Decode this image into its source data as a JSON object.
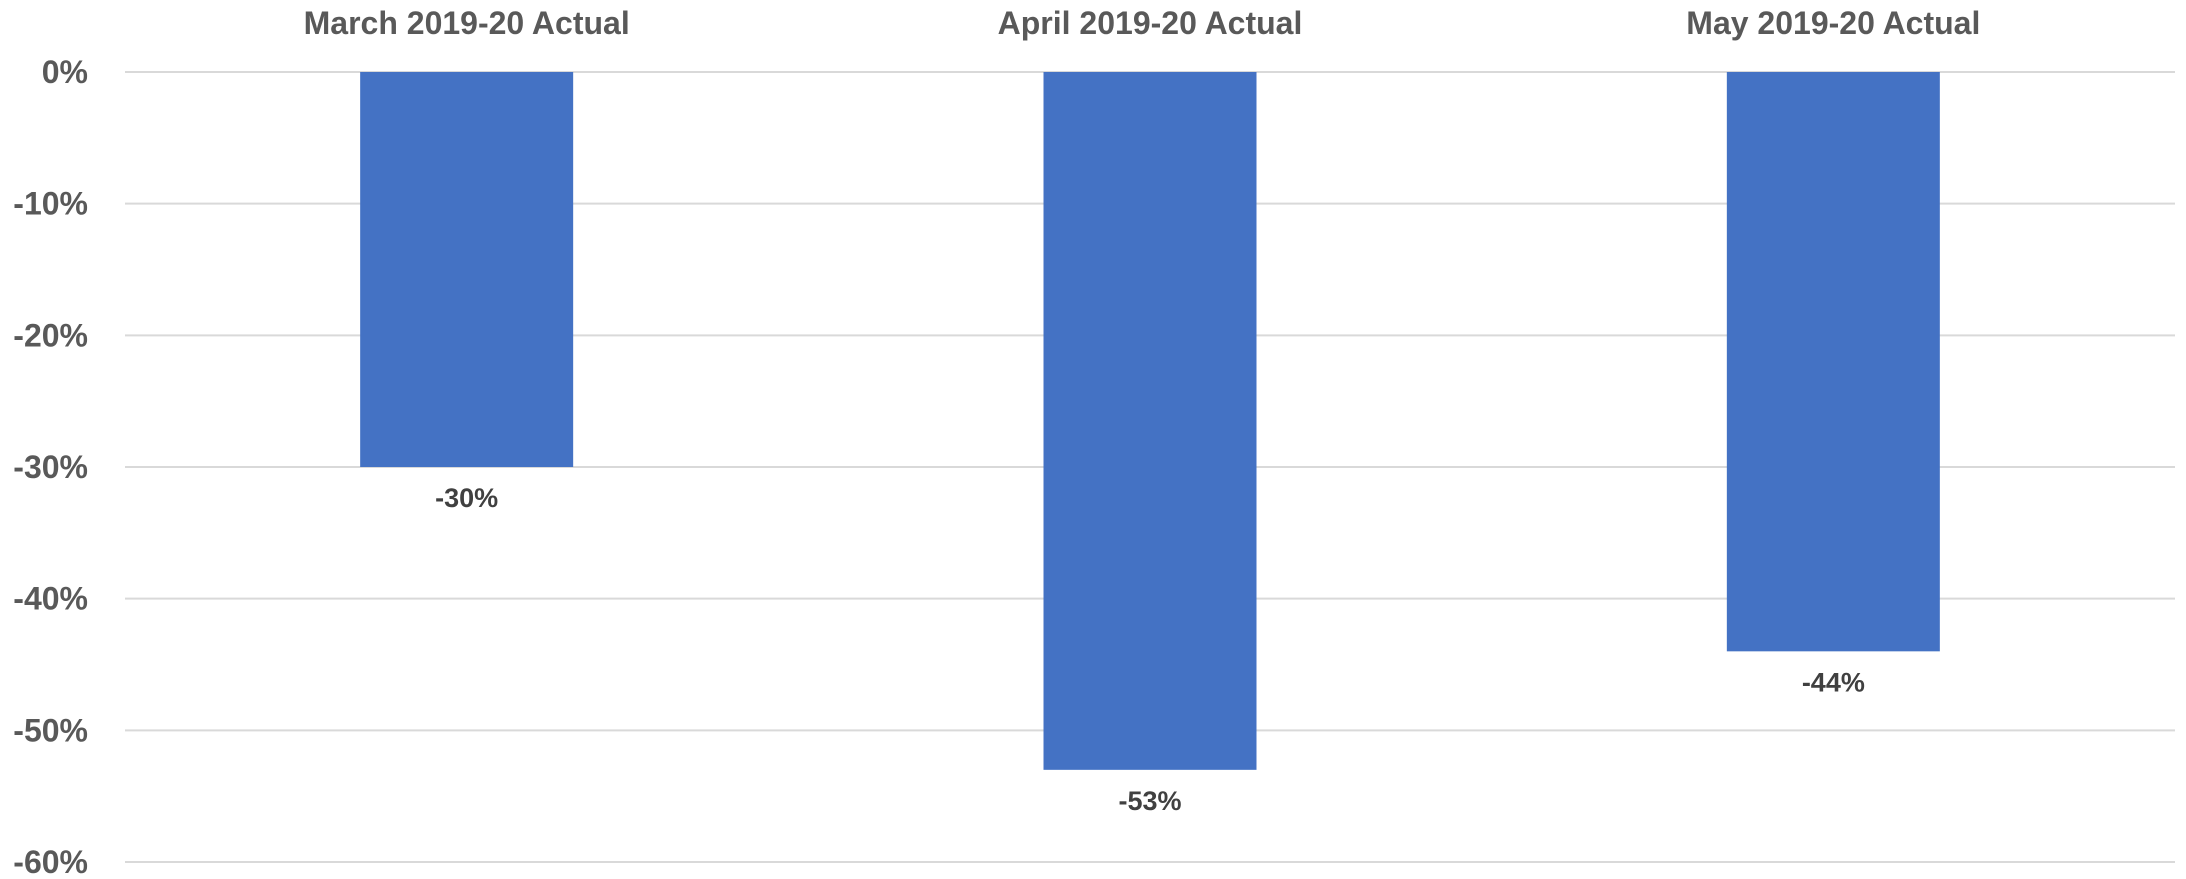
{
  "chart_data": {
    "type": "bar",
    "categories": [
      "March 2019-20 Actual",
      "April 2019-20 Actual",
      "May 2019-20 Actual"
    ],
    "values": [
      -30,
      -53,
      -44
    ],
    "data_labels": [
      "-30%",
      "-53%",
      "-44%"
    ],
    "ylim": [
      -60,
      0
    ],
    "yticks": [
      0,
      -10,
      -20,
      -30,
      -40,
      -50,
      -60
    ],
    "ytick_labels": [
      "0%",
      "-10%",
      "-20%",
      "-30%",
      "-40%",
      "-50%",
      "-60%"
    ],
    "category_axis_position": "top",
    "grid": true,
    "legend": false,
    "colors": {
      "bar": "#4472c4",
      "grid": "#d9d9d9",
      "axis_text": "#595959",
      "data_label": "#404040"
    }
  }
}
